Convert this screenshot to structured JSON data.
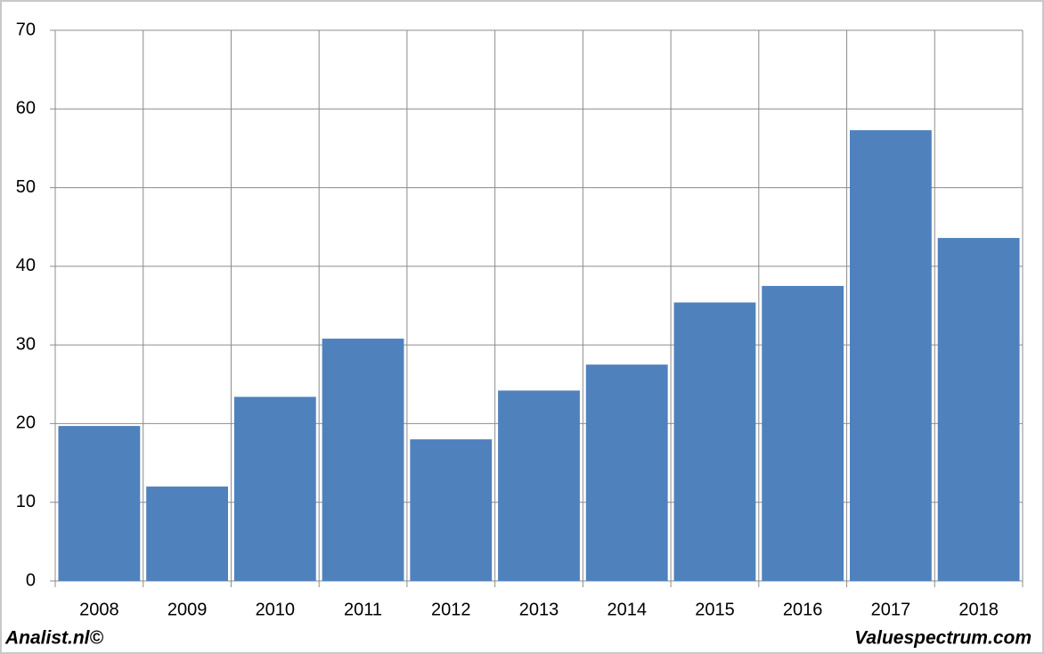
{
  "chart_data": {
    "type": "bar",
    "categories": [
      "2008",
      "2009",
      "2010",
      "2011",
      "2012",
      "2013",
      "2014",
      "2015",
      "2016",
      "2017",
      "2018"
    ],
    "values": [
      19.7,
      12.0,
      23.4,
      30.8,
      18.0,
      24.2,
      27.5,
      35.4,
      37.5,
      57.3,
      43.6
    ],
    "color": "#4f81bd",
    "ylim": [
      0,
      70
    ],
    "yticks": [
      0,
      10,
      20,
      30,
      40,
      50,
      60,
      70
    ],
    "grid": true,
    "footer_left": "Analist.nl©",
    "footer_right": "Valuespectrum.com"
  }
}
